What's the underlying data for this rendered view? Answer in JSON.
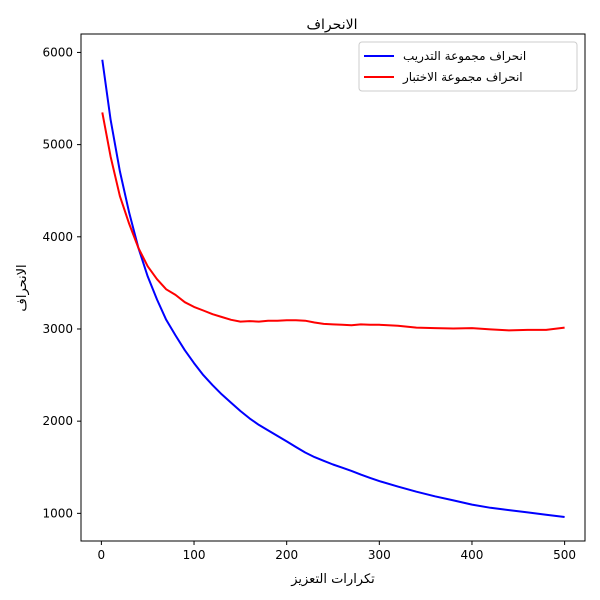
{
  "chart_data": {
    "type": "line",
    "title": "الانحراف",
    "xlabel": "تكرارات التعزيز",
    "ylabel": "الانحراف",
    "xlim": [
      -22,
      522
    ],
    "ylim": [
      700,
      6200
    ],
    "xticks": [
      0,
      100,
      200,
      300,
      400,
      500
    ],
    "yticks": [
      1000,
      2000,
      3000,
      4000,
      5000,
      6000
    ],
    "grid": false,
    "legend_position": "top-right",
    "series": [
      {
        "name": "انحراف مجموعة التدريب",
        "color": "#0000ff",
        "x": [
          1,
          10,
          20,
          30,
          40,
          50,
          60,
          70,
          80,
          90,
          100,
          110,
          120,
          130,
          140,
          150,
          160,
          170,
          180,
          190,
          200,
          210,
          220,
          230,
          240,
          250,
          260,
          270,
          280,
          290,
          300,
          320,
          340,
          360,
          380,
          400,
          420,
          440,
          460,
          480,
          500
        ],
        "values": [
          5920,
          5270,
          4710,
          4260,
          3880,
          3570,
          3320,
          3100,
          2930,
          2770,
          2630,
          2500,
          2390,
          2290,
          2200,
          2110,
          2030,
          1960,
          1900,
          1840,
          1780,
          1720,
          1660,
          1610,
          1570,
          1530,
          1495,
          1460,
          1420,
          1385,
          1350,
          1290,
          1235,
          1185,
          1140,
          1095,
          1060,
          1035,
          1010,
          985,
          960
        ]
      },
      {
        "name": "انحراف مجموعة الاختبار",
        "color": "#ff0000",
        "x": [
          1,
          10,
          20,
          30,
          40,
          50,
          60,
          70,
          80,
          90,
          100,
          110,
          120,
          130,
          140,
          150,
          160,
          170,
          180,
          190,
          200,
          210,
          220,
          230,
          240,
          250,
          260,
          270,
          280,
          290,
          300,
          320,
          340,
          360,
          380,
          400,
          420,
          440,
          460,
          480,
          500
        ],
        "values": [
          5350,
          4870,
          4440,
          4140,
          3880,
          3680,
          3540,
          3430,
          3370,
          3290,
          3240,
          3200,
          3160,
          3130,
          3100,
          3080,
          3085,
          3080,
          3090,
          3090,
          3095,
          3095,
          3090,
          3070,
          3055,
          3050,
          3045,
          3040,
          3050,
          3045,
          3045,
          3035,
          3015,
          3010,
          3005,
          3010,
          2995,
          2985,
          2990,
          2990,
          3015
        ]
      }
    ]
  }
}
